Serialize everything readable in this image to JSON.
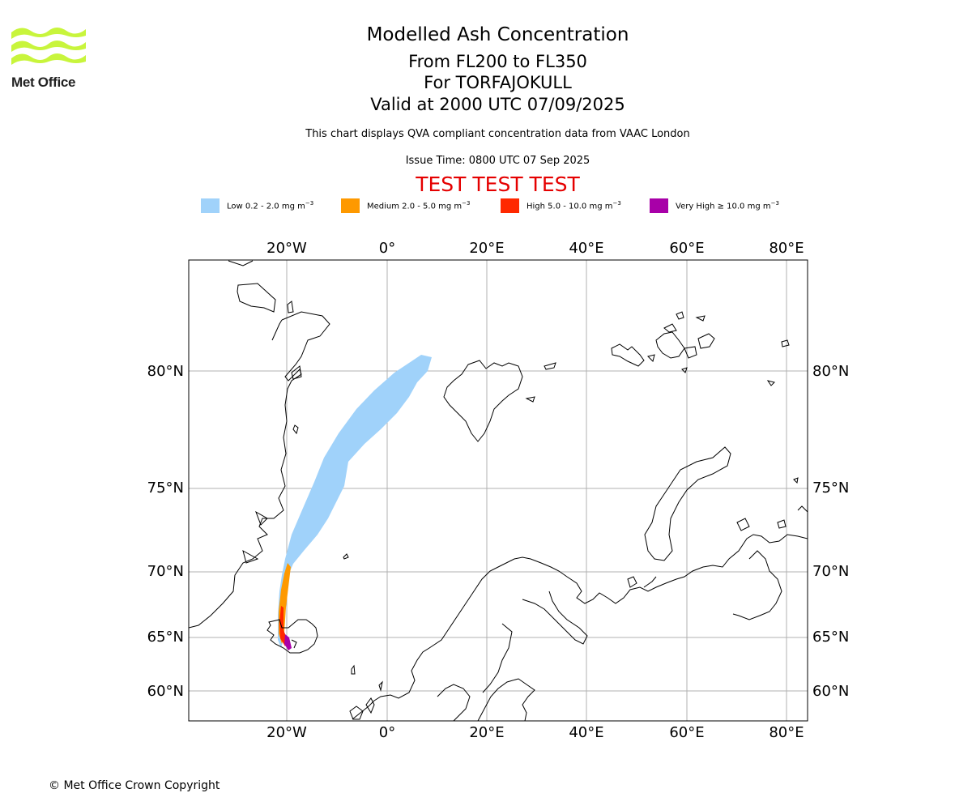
{
  "logo": {
    "text": "Met Office"
  },
  "title": {
    "main": "Modelled Ash Concentration",
    "levels": "From FL200 to FL350",
    "volcano": "For TORFAJOKULL",
    "valid": "Valid at 2000 UTC 07/09/2025",
    "description": "This chart displays QVA compliant concentration data from VAAC London",
    "issue": "Issue Time: 0800 UTC 07 Sep 2025",
    "test_banner": "TEST TEST TEST"
  },
  "legend": [
    {
      "label": "Low 0.2 - 2.0 mg m",
      "sup": "−3",
      "color": "#a0d2fa"
    },
    {
      "label": "Medium 2.0 - 5.0 mg m",
      "sup": "−3",
      "color": "#fe9900"
    },
    {
      "label": "High 5.0 - 10.0 mg m",
      "sup": "−3",
      "color": "#ff2800"
    },
    {
      "label": "Very High  ≥  10.0 mg m",
      "sup": "−3",
      "color": "#a800a8"
    }
  ],
  "map": {
    "lon_labels": [
      "20°W",
      "0°",
      "20°E",
      "40°E",
      "60°E",
      "80°E"
    ],
    "lat_labels": [
      "80°N",
      "75°N",
      "70°N",
      "65°N",
      "60°N"
    ],
    "grid": true
  },
  "footer": {
    "copyright": "© Met Office Crown Copyright"
  }
}
